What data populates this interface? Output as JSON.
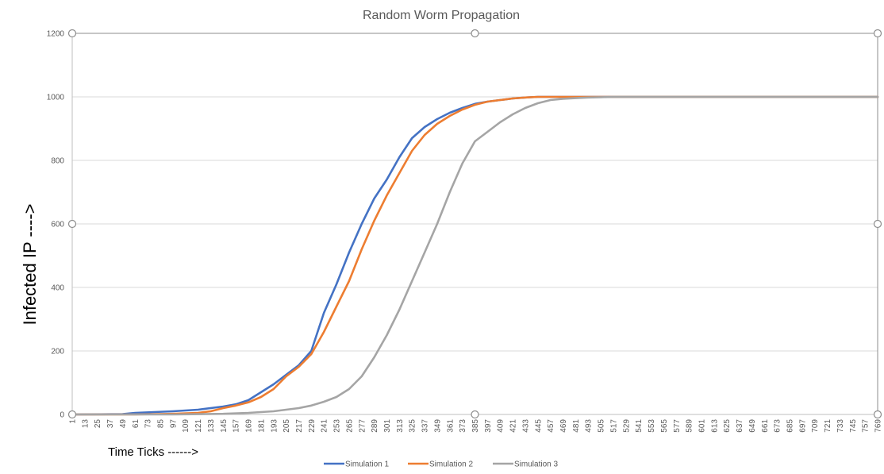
{
  "chart_data": {
    "type": "line",
    "title": "Random Worm Propagation",
    "xlabel": "Time Ticks ------>",
    "ylabel": "Infected IP ---->",
    "ylim": [
      0,
      1200
    ],
    "xlim": [
      1,
      769
    ],
    "yticks": [
      "0",
      "200",
      "400",
      "600",
      "800",
      "1000",
      "1200"
    ],
    "xticks": [
      "1",
      "13",
      "25",
      "37",
      "49",
      "61",
      "73",
      "85",
      "97",
      "109",
      "121",
      "133",
      "145",
      "157",
      "169",
      "181",
      "193",
      "205",
      "217",
      "229",
      "241",
      "253",
      "265",
      "277",
      "289",
      "301",
      "313",
      "325",
      "337",
      "349",
      "361",
      "373",
      "385",
      "397",
      "409",
      "421",
      "433",
      "445",
      "457",
      "469",
      "481",
      "493",
      "505",
      "517",
      "529",
      "541",
      "553",
      "565",
      "577",
      "589",
      "601",
      "613",
      "625",
      "637",
      "649",
      "661",
      "673",
      "685",
      "697",
      "709",
      "721",
      "733",
      "745",
      "757",
      "769"
    ],
    "legend_position": "bottom",
    "grid": true,
    "series": [
      {
        "name": "Simulation 1",
        "color": "#4472c4",
        "x": [
          1,
          49,
          61,
          97,
          121,
          145,
          157,
          169,
          181,
          193,
          205,
          217,
          229,
          241,
          253,
          265,
          277,
          289,
          301,
          313,
          325,
          337,
          349,
          361,
          373,
          385,
          397,
          409,
          421,
          433,
          445,
          457,
          769
        ],
        "y": [
          0,
          1,
          5,
          10,
          15,
          25,
          32,
          45,
          70,
          95,
          125,
          155,
          200,
          320,
          410,
          510,
          600,
          680,
          740,
          810,
          870,
          905,
          930,
          950,
          965,
          978,
          985,
          990,
          995,
          998,
          1000,
          1000,
          1000
        ]
      },
      {
        "name": "Simulation 2",
        "color": "#ed7d31",
        "x": [
          1,
          61,
          97,
          121,
          133,
          145,
          157,
          169,
          181,
          193,
          205,
          217,
          229,
          241,
          253,
          265,
          277,
          289,
          301,
          313,
          325,
          337,
          349,
          361,
          373,
          385,
          397,
          409,
          421,
          433,
          445,
          457,
          769
        ],
        "y": [
          0,
          0,
          2,
          5,
          10,
          20,
          28,
          38,
          55,
          80,
          120,
          150,
          190,
          260,
          340,
          420,
          520,
          610,
          690,
          760,
          830,
          880,
          915,
          940,
          960,
          975,
          985,
          990,
          995,
          998,
          1000,
          1000,
          1000
        ]
      },
      {
        "name": "Simulation 3",
        "color": "#a5a5a5",
        "x": [
          1,
          97,
          145,
          169,
          193,
          205,
          217,
          229,
          241,
          253,
          265,
          277,
          289,
          301,
          313,
          325,
          337,
          349,
          361,
          373,
          385,
          397,
          409,
          421,
          433,
          445,
          457,
          469,
          481,
          493,
          505,
          517,
          529,
          541,
          769
        ],
        "y": [
          0,
          0,
          2,
          5,
          10,
          15,
          20,
          28,
          40,
          55,
          80,
          120,
          180,
          250,
          330,
          420,
          510,
          600,
          700,
          790,
          860,
          890,
          920,
          945,
          965,
          980,
          990,
          994,
          996,
          998,
          999,
          1000,
          1000,
          1000,
          1000
        ]
      }
    ]
  }
}
